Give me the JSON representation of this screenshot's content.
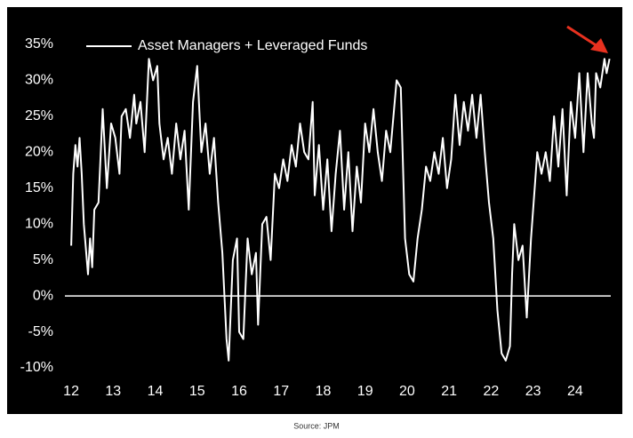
{
  "chart_data": {
    "type": "line",
    "legend_label": "Asset Managers + Leveraged Funds",
    "source": "Source: JPM",
    "series": [
      {
        "name": "Asset Managers + Leveraged Funds",
        "color": "#ffffff",
        "x": [
          12.0,
          12.05,
          12.1,
          12.15,
          12.2,
          12.25,
          12.3,
          12.4,
          12.45,
          12.5,
          12.55,
          12.65,
          12.75,
          12.85,
          12.95,
          13.05,
          13.15,
          13.2,
          13.3,
          13.4,
          13.5,
          13.55,
          13.65,
          13.75,
          13.85,
          13.95,
          14.05,
          14.1,
          14.2,
          14.3,
          14.4,
          14.5,
          14.6,
          14.7,
          14.8,
          14.9,
          15.0,
          15.1,
          15.2,
          15.3,
          15.4,
          15.5,
          15.6,
          15.7,
          15.75,
          15.85,
          15.95,
          16.0,
          16.1,
          16.2,
          16.3,
          16.4,
          16.45,
          16.55,
          16.65,
          16.75,
          16.85,
          16.95,
          17.05,
          17.15,
          17.25,
          17.35,
          17.45,
          17.55,
          17.65,
          17.75,
          17.8,
          17.9,
          18.0,
          18.1,
          18.2,
          18.3,
          18.4,
          18.5,
          18.6,
          18.7,
          18.8,
          18.9,
          19.0,
          19.1,
          19.2,
          19.3,
          19.4,
          19.5,
          19.6,
          19.75,
          19.85,
          19.95,
          20.05,
          20.15,
          20.25,
          20.35,
          20.45,
          20.55,
          20.65,
          20.75,
          20.85,
          20.95,
          21.05,
          21.15,
          21.25,
          21.35,
          21.45,
          21.55,
          21.65,
          21.75,
          21.85,
          21.95,
          22.05,
          22.15,
          22.25,
          22.35,
          22.45,
          22.5,
          22.55,
          22.65,
          22.75,
          22.85,
          22.95,
          23.05,
          23.1,
          23.2,
          23.3,
          23.4,
          23.5,
          23.6,
          23.7,
          23.8,
          23.9,
          24.0,
          24.1,
          24.2,
          24.3,
          24.4,
          24.45,
          24.5,
          24.6,
          24.7,
          24.75,
          24.82
        ],
        "values": [
          7,
          17,
          21,
          18,
          22,
          17,
          10,
          3,
          8,
          4,
          12,
          13,
          26,
          15,
          24,
          22,
          17,
          25,
          26,
          22,
          28,
          24,
          27,
          20,
          33,
          30,
          32,
          24,
          19,
          22,
          17,
          24,
          19,
          23,
          12,
          27,
          32,
          20,
          24,
          17,
          22,
          13,
          6,
          -6,
          -9,
          5,
          8,
          -5,
          -6,
          8,
          3,
          6,
          -4,
          10,
          11,
          5,
          17,
          15,
          19,
          16,
          21,
          18,
          24,
          20,
          19,
          27,
          14,
          21,
          12,
          19,
          9,
          17,
          23,
          12,
          20,
          9,
          18,
          13,
          24,
          20,
          26,
          20,
          16,
          23,
          20,
          30,
          29,
          8,
          3,
          2,
          8,
          12,
          18,
          16,
          20,
          17,
          22,
          15,
          19,
          28,
          21,
          27,
          23,
          28,
          22,
          28,
          20,
          13,
          8,
          -2,
          -8,
          -9,
          -7,
          3,
          10,
          5,
          7,
          -3,
          8,
          16,
          20,
          17,
          20,
          16,
          25,
          18,
          26,
          14,
          27,
          22,
          31,
          20,
          31,
          24,
          22,
          31,
          29,
          33,
          31,
          33
        ]
      }
    ],
    "xlim": [
      11.85,
      24.85
    ],
    "xticks": [
      12,
      13,
      14,
      15,
      16,
      17,
      18,
      19,
      20,
      21,
      22,
      23,
      24
    ],
    "ylim": [
      -10,
      35
    ],
    "yticks": [
      {
        "value": 35,
        "label": "35%"
      },
      {
        "value": 30,
        "label": "30%"
      },
      {
        "value": 25,
        "label": "25%"
      },
      {
        "value": 20,
        "label": "20%"
      },
      {
        "value": 15,
        "label": "15%"
      },
      {
        "value": 10,
        "label": "10%"
      },
      {
        "value": 5,
        "label": "5%"
      },
      {
        "value": 0,
        "label": "0%"
      },
      {
        "value": -5,
        "label": "-5%"
      },
      {
        "value": -10,
        "label": "-10%"
      }
    ],
    "grid": false
  }
}
